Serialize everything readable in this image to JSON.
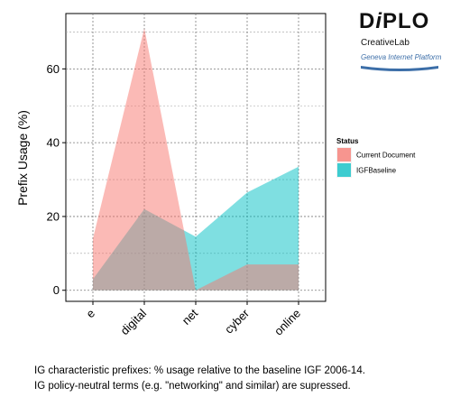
{
  "logo": {
    "brand": "DIPLO",
    "brand_part1": "D",
    "brand_part2": "i",
    "brand_part3": "PLO",
    "sub": "CreativeLab",
    "platform": "Geneva Internet Platform"
  },
  "caption": {
    "line1": "IG characteristic prefixes: % usage relative to the baseline IGF 2006-14.",
    "line2": "IG policy-neutral terms (e.g. \"networking\" and similar) are supressed."
  },
  "chart_data": {
    "type": "area",
    "categories": [
      "e",
      "digital",
      "net",
      "cyber",
      "online"
    ],
    "series": [
      {
        "name": "Current Document",
        "values": [
          14,
          71,
          0,
          7,
          7
        ],
        "color": "#F8766D"
      },
      {
        "name": "IGFBaseline",
        "values": [
          3,
          22,
          14.5,
          26.5,
          33.5
        ],
        "color": "#00BFC4"
      }
    ],
    "title": "",
    "xlabel": "",
    "ylabel": "Prefix Usage (%)",
    "ylim": [
      -3,
      75
    ],
    "yticks": [
      0,
      20,
      40,
      60
    ],
    "grid": true,
    "legend": {
      "title": "Status",
      "position": "right"
    }
  }
}
